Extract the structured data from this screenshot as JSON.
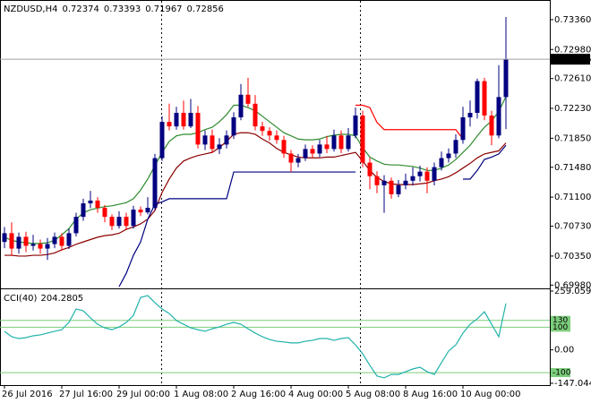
{
  "chart_data": [
    {
      "type": "candlestick",
      "title": "NZDUSD,H4",
      "categories": [
        "26 Jul 2016",
        null,
        null,
        null,
        null,
        null,
        null,
        null,
        "27 Jul 16:00",
        null,
        null,
        null,
        null,
        null,
        null,
        null,
        "29 Jul 00:00",
        null,
        null,
        null,
        null,
        null,
        null,
        null,
        "1 Aug 08:00",
        null,
        null,
        null,
        null,
        null,
        null,
        null,
        "2 Aug 16:00",
        null,
        null,
        null,
        null,
        null,
        null,
        null,
        "4 Aug 00:00",
        null,
        null,
        null,
        null,
        null,
        null,
        null,
        "5 Aug 08:00",
        null,
        null,
        null,
        null,
        null,
        null,
        null,
        "8 Aug 16:00",
        null,
        null,
        null,
        null,
        null,
        null,
        null,
        "10 Aug 00:00",
        null,
        null,
        null,
        null,
        null,
        null
      ],
      "open": [
        0.7053,
        0.70641,
        0.70445,
        0.70595,
        0.7048,
        0.70503,
        0.70445,
        0.70503,
        0.70595,
        0.7048,
        0.70641,
        0.70849,
        0.71021,
        0.71056,
        0.70964,
        0.70849,
        0.70733,
        0.70849,
        0.70733,
        0.70941,
        0.70906,
        0.70964,
        0.71597,
        0.72058,
        0.72001,
        0.72173,
        0.72001,
        0.72173,
        0.7177,
        0.71885,
        0.71713,
        0.7177,
        0.71885,
        0.72116,
        0.72404,
        0.72289,
        0.72001,
        0.71943,
        0.71885,
        0.71828,
        0.71655,
        0.7154,
        0.71597,
        0.71713,
        0.71655,
        0.7177,
        0.71713,
        0.71885,
        0.71713,
        0.71885,
        0.72139,
        0.7154,
        0.71367,
        0.71252,
        0.71309,
        0.71137,
        0.71252,
        0.71309,
        0.71367,
        0.71425,
        0.71309,
        0.71482,
        0.71597,
        0.71655,
        0.71828,
        0.72116,
        0.72173,
        0.72577,
        0.72139,
        0.71885,
        0.72374
      ],
      "high": [
        0.7072,
        0.7078,
        0.7065,
        0.7066,
        0.7062,
        0.7056,
        0.7058,
        0.7065,
        0.7064,
        0.707,
        0.709,
        0.7108,
        0.7118,
        0.711,
        0.71,
        0.7088,
        0.7092,
        0.709,
        0.7099,
        0.7098,
        0.711,
        0.7165,
        0.7213,
        0.7229,
        0.7225,
        0.7233,
        0.7235,
        0.7226,
        0.7195,
        0.7196,
        0.7185,
        0.7195,
        0.7218,
        0.7254,
        0.7262,
        0.724,
        0.7206,
        0.7199,
        0.7195,
        0.7188,
        0.717,
        0.7165,
        0.7177,
        0.7176,
        0.7183,
        0.7188,
        0.7196,
        0.7195,
        0.7198,
        0.7224,
        0.722,
        0.716,
        0.7143,
        0.7138,
        0.7135,
        0.7132,
        0.714,
        0.7148,
        0.715,
        0.7148,
        0.7154,
        0.7168,
        0.7172,
        0.719,
        0.7225,
        0.7233,
        0.7261,
        0.7262,
        0.722,
        0.7278,
        0.73393
      ],
      "low": [
        0.7045,
        0.7035,
        0.7038,
        0.704,
        0.7042,
        0.7038,
        0.703,
        0.7045,
        0.7042,
        0.7044,
        0.706,
        0.708,
        0.7096,
        0.709,
        0.7078,
        0.7068,
        0.707,
        0.7068,
        0.707,
        0.7086,
        0.7088,
        0.7093,
        0.7156,
        0.7195,
        0.7196,
        0.7196,
        0.7198,
        0.7172,
        0.717,
        0.7166,
        0.7165,
        0.7172,
        0.7184,
        0.7208,
        0.7225,
        0.7195,
        0.7188,
        0.7182,
        0.7178,
        0.716,
        0.7142,
        0.7148,
        0.7156,
        0.716,
        0.7161,
        0.7166,
        0.7168,
        0.7166,
        0.7168,
        0.7185,
        0.7148,
        0.712,
        0.7115,
        0.709,
        0.7108,
        0.711,
        0.712,
        0.7125,
        0.713,
        0.7115,
        0.7125,
        0.7144,
        0.7154,
        0.716,
        0.7178,
        0.72,
        0.721,
        0.7208,
        0.7176,
        0.7185,
        0.71967
      ],
      "close": [
        0.70641,
        0.70445,
        0.70595,
        0.7048,
        0.70503,
        0.70445,
        0.70503,
        0.70595,
        0.7048,
        0.70641,
        0.70849,
        0.71021,
        0.71056,
        0.70964,
        0.70849,
        0.70733,
        0.70849,
        0.70733,
        0.70941,
        0.70906,
        0.70964,
        0.71597,
        0.72058,
        0.72001,
        0.72173,
        0.72001,
        0.72173,
        0.7177,
        0.71885,
        0.71713,
        0.7177,
        0.71885,
        0.72116,
        0.72404,
        0.72289,
        0.72001,
        0.71943,
        0.71885,
        0.71828,
        0.71655,
        0.7154,
        0.71597,
        0.71713,
        0.71655,
        0.7177,
        0.71713,
        0.71885,
        0.71713,
        0.71885,
        0.72139,
        0.7154,
        0.71367,
        0.71252,
        0.71309,
        0.71137,
        0.71252,
        0.71309,
        0.71367,
        0.71425,
        0.71309,
        0.71482,
        0.71597,
        0.71655,
        0.71828,
        0.72116,
        0.72173,
        0.72577,
        0.72139,
        0.71885,
        0.72374,
        0.72856
      ],
      "up_color": "#000080",
      "down_color": "#ff0000",
      "last_price_color": "#000000",
      "overlays": [
        {
          "color": "#2e8b2e",
          "values": [
            0.7059,
            0.7055,
            0.7053,
            0.7052,
            0.7051,
            0.7051,
            0.7052,
            0.7055,
            0.7062,
            0.707,
            0.7082,
            0.709,
            0.7094,
            0.7096,
            0.7098,
            0.7099,
            0.7101,
            0.7103,
            0.7108,
            0.7119,
            0.7133,
            0.715,
            0.7167,
            0.7181,
            0.7188,
            0.719,
            0.719,
            0.7192,
            0.7196,
            0.7199,
            0.7206,
            0.7215,
            0.7227,
            0.7227,
            0.7224,
            0.722,
            0.7213,
            0.7206,
            0.7199,
            0.7192,
            0.7188,
            0.7184,
            0.7183,
            0.7183,
            0.7184,
            0.7187,
            0.7189,
            0.719,
            0.719,
            0.7188,
            0.7173,
            0.7161,
            0.7156,
            0.7152,
            0.7151,
            0.7151,
            0.715,
            0.7149,
            0.7147,
            0.7144,
            0.7144,
            0.7147,
            0.7151,
            0.7158,
            0.7167,
            0.7176,
            0.7188,
            0.7199,
            0.7207,
            0.7219,
            0.7238
          ]
        },
        {
          "color": "#8b0000",
          "values": [
            0.7036,
            0.7036,
            0.7035,
            0.7035,
            0.7036,
            0.7036,
            0.7037,
            0.7039,
            0.7043,
            0.7046,
            0.705,
            0.7053,
            0.7056,
            0.7059,
            0.7061,
            0.7062,
            0.7064,
            0.7069,
            0.7072,
            0.7076,
            0.7082,
            0.7093,
            0.7116,
            0.7133,
            0.7147,
            0.7156,
            0.716,
            0.7163,
            0.7165,
            0.7167,
            0.7173,
            0.7181,
            0.719,
            0.7192,
            0.7192,
            0.719,
            0.7184,
            0.7179,
            0.7172,
            0.7167,
            0.7164,
            0.7161,
            0.716,
            0.716,
            0.716,
            0.7161,
            0.7161,
            0.7163,
            0.7165,
            0.7167,
            0.7156,
            0.7144,
            0.7135,
            0.713,
            0.7127,
            0.7126,
            0.7126,
            0.7126,
            0.7127,
            0.7128,
            0.7131,
            0.7133,
            0.7136,
            0.7141,
            0.7147,
            0.7153,
            0.716,
            0.7165,
            0.7167,
            0.7169,
            0.7179
          ]
        },
        {
          "color": "#000080",
          "values": [
            null,
            null,
            null,
            null,
            null,
            null,
            null,
            null,
            null,
            null,
            null,
            null,
            null,
            null,
            null,
            null,
            0.6996,
            0.7013,
            0.7036,
            0.7053,
            0.7082,
            0.7101,
            0.7104,
            0.7108,
            0.7108,
            0.7108,
            0.7108,
            0.7108,
            0.7108,
            0.7108,
            0.7108,
            0.7108,
            0.7142,
            0.7142,
            0.7142,
            0.7142,
            0.7142,
            0.7142,
            0.7142,
            0.7142,
            0.7142,
            0.7142,
            0.7142,
            0.7142,
            0.7142,
            0.7142,
            0.7142,
            0.7142,
            0.7142,
            0.7142,
            null,
            null,
            null,
            null,
            null,
            null,
            null,
            null,
            null,
            null,
            null,
            null,
            null,
            null,
            0.7133,
            0.7133,
            0.7144,
            0.7158,
            0.7161,
            0.7165,
            0.7176
          ]
        },
        {
          "color": "#ff0000",
          "values": [
            null,
            null,
            null,
            null,
            null,
            null,
            null,
            null,
            null,
            null,
            null,
            null,
            null,
            null,
            null,
            null,
            null,
            null,
            null,
            null,
            null,
            null,
            null,
            null,
            null,
            null,
            null,
            null,
            null,
            null,
            null,
            null,
            null,
            null,
            null,
            null,
            null,
            null,
            null,
            null,
            null,
            null,
            null,
            null,
            null,
            null,
            null,
            null,
            null,
            0.7227,
            0.7227,
            0.7224,
            0.7205,
            0.7196,
            0.7196,
            0.7196,
            0.7196,
            0.7196,
            0.7196,
            0.7196,
            0.7196,
            0.7196,
            0.7196,
            0.7196,
            0.7184,
            null,
            null,
            null,
            null,
            null,
            null
          ]
        }
      ],
      "ylim": [
        0.6995,
        0.7361
      ],
      "yticks": [
        {
          "value": 0.7336,
          "label": "0.73360"
        },
        {
          "value": 0.7298,
          "label": "0.72980"
        },
        {
          "value": 0.7261,
          "label": "0.72610"
        },
        {
          "value": 0.7223,
          "label": "0.72230"
        },
        {
          "value": 0.7185,
          "label": "0.71850"
        },
        {
          "value": 0.7148,
          "label": "0.71480"
        },
        {
          "value": 0.711,
          "label": "0.71100"
        },
        {
          "value": 0.7073,
          "label": "0.70730"
        },
        {
          "value": 0.7035,
          "label": "0.70350"
        },
        {
          "value": 0.6998,
          "label": "0.69980"
        }
      ]
    },
    {
      "type": "line",
      "title": "CCI(40)",
      "color": "#20b2aa",
      "values": [
        81.6,
        58,
        50,
        54,
        62,
        66,
        74,
        82,
        89,
        121,
        180,
        172,
        141,
        113,
        97,
        89,
        101,
        121,
        152,
        231,
        239,
        208,
        180,
        160,
        129,
        113,
        97,
        89,
        82,
        93,
        101,
        113,
        121,
        113,
        93,
        74,
        58,
        46,
        38,
        35,
        31,
        31,
        38,
        42,
        50,
        50,
        42,
        50,
        54,
        22,
        -17,
        -68,
        -115,
        -123,
        -108,
        -108,
        -96,
        -84,
        -76,
        -96,
        -108,
        -56,
        -5,
        22,
        74,
        113,
        137,
        168,
        113,
        58,
        204.2805
      ],
      "ylim": [
        -147.0447,
        259.0595
      ],
      "yticks": [
        259.0595,
        {
          "value": 0,
          "label": "0.00"
        },
        -147.0447
      ],
      "levels": [
        130,
        100,
        -100
      ],
      "level_color": "#7ccd7c"
    }
  ]
}
